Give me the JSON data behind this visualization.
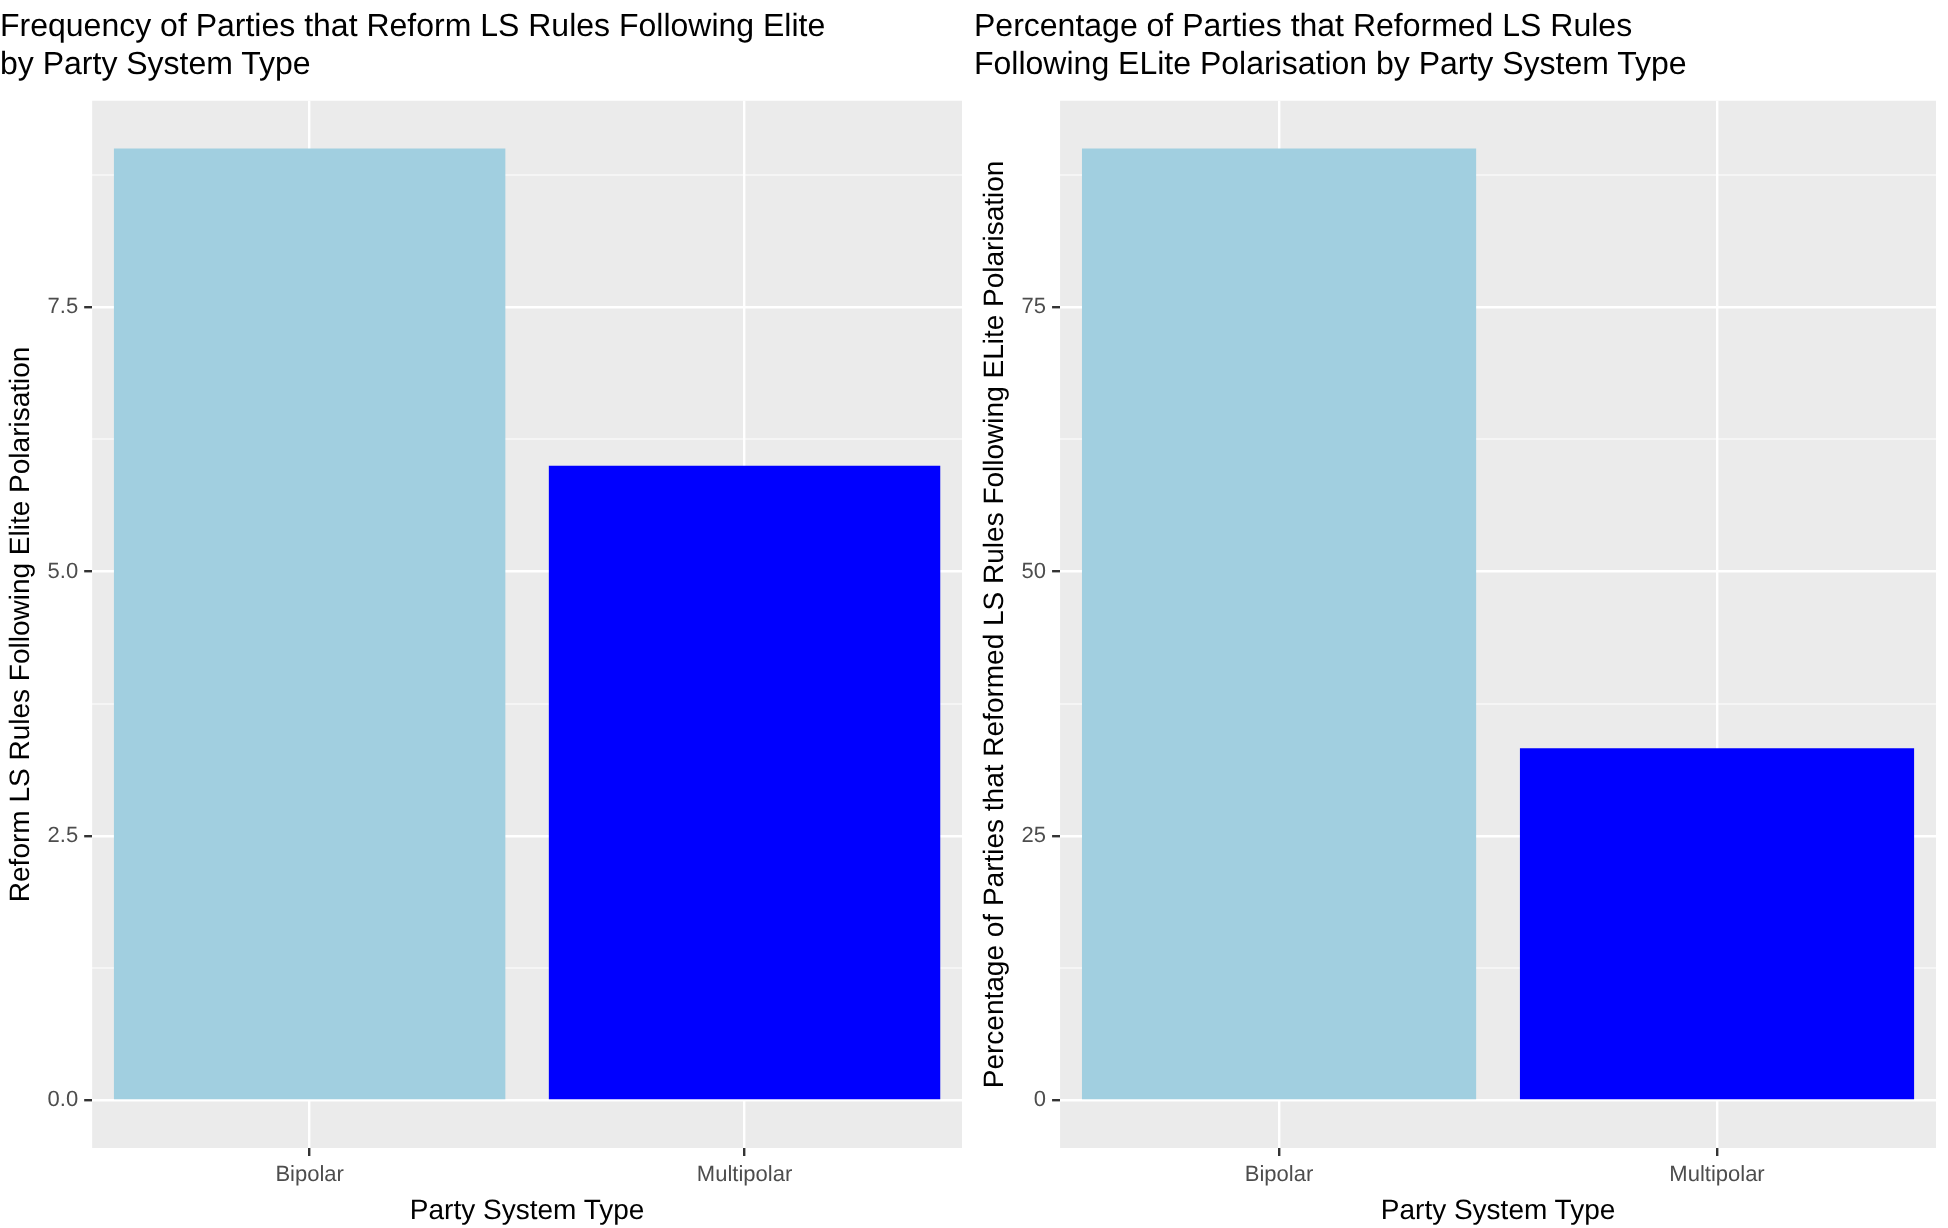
{
  "chart_data": [
    {
      "type": "bar",
      "title": "Frequency of Parties that Reform LS Rules Following Elite\nby Party System Type",
      "xlabel": "Party System Type",
      "ylabel": "Reform LS Rules Following Elite Polarisation",
      "categories": [
        "Bipolar",
        "Multipolar"
      ],
      "values": [
        9,
        6
      ],
      "colors": [
        "#a1cfe0",
        "#0000ff"
      ],
      "ylim": [
        -0.45,
        9.45
      ],
      "yticks": [
        {
          "value": 0,
          "label": "0.0"
        },
        {
          "value": 1.25,
          "label": null
        },
        {
          "value": 2.5,
          "label": "2.5"
        },
        {
          "value": 3.75,
          "label": null
        },
        {
          "value": 5,
          "label": "5.0"
        },
        {
          "value": 6.25,
          "label": null
        },
        {
          "value": 7.5,
          "label": "7.5"
        },
        {
          "value": 8.75,
          "label": null
        }
      ],
      "grid": true
    },
    {
      "type": "bar",
      "title": "Percentage of Parties that Reformed LS Rules\nFollowing ELite Polarisation by Party System Type",
      "xlabel": "Party System Type",
      "ylabel": "Percentage of Parties that Reformed LS Rules Following ELite Polarisation",
      "categories": [
        "Bipolar",
        "Multipolar"
      ],
      "values": [
        90,
        33.3
      ],
      "colors": [
        "#a1cfe0",
        "#0000ff"
      ],
      "ylim": [
        -4.5,
        94.5
      ],
      "yticks": [
        0,
        {
          "value": 12.5,
          "label": null
        },
        25,
        {
          "value": 37.5,
          "label": null
        },
        50,
        {
          "value": 62.5,
          "label": null
        },
        75,
        {
          "value": 87.5,
          "label": null
        }
      ],
      "grid": true
    }
  ]
}
